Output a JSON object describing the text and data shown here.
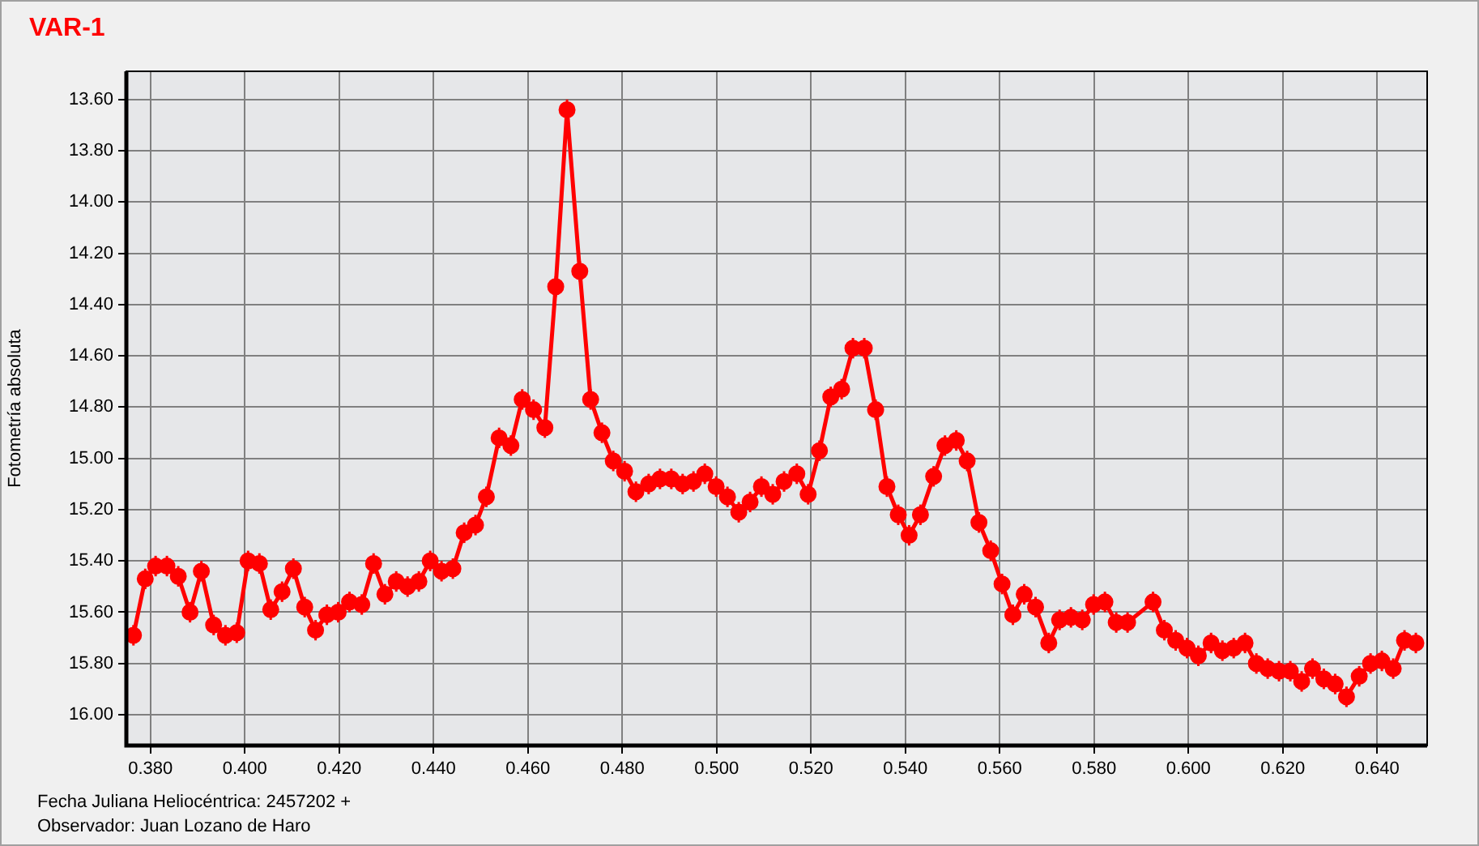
{
  "chart_data": {
    "type": "line",
    "title": "VAR-1",
    "xlabel": "Fecha Juliana Heliocéntrica: 2457202 +",
    "ylabel": "Fotometría absoluta",
    "annotations": [
      "Observador: Juan Lozano de Haro"
    ],
    "x": [
      0.3764,
      0.3789,
      0.3811,
      0.3835,
      0.3859,
      0.3884,
      0.3908,
      0.3934,
      0.3959,
      0.3983,
      0.4007,
      0.4031,
      0.4055,
      0.4079,
      0.4103,
      0.4127,
      0.415,
      0.4174,
      0.4198,
      0.4222,
      0.4248,
      0.4273,
      0.4297,
      0.4321,
      0.4345,
      0.4369,
      0.4393,
      0.4417,
      0.4441,
      0.4465,
      0.4489,
      0.4512,
      0.4539,
      0.4564,
      0.4588,
      0.4612,
      0.4636,
      0.4659,
      0.4683,
      0.471,
      0.4733,
      0.4757,
      0.4781,
      0.4805,
      0.4829,
      0.4856,
      0.488,
      0.4904,
      0.4928,
      0.4951,
      0.4975,
      0.4999,
      0.5023,
      0.5047,
      0.5071,
      0.5095,
      0.5119,
      0.5143,
      0.517,
      0.5194,
      0.5218,
      0.5242,
      0.5265,
      0.5289,
      0.5313,
      0.5337,
      0.5361,
      0.5385,
      0.5408,
      0.5432,
      0.546,
      0.5484,
      0.5508,
      0.5531,
      0.5556,
      0.5581,
      0.5605,
      0.5628,
      0.5652,
      0.5676,
      0.5704,
      0.5727,
      0.5751,
      0.5775,
      0.5799,
      0.5823,
      0.5847,
      0.5871,
      0.5925,
      0.5949,
      0.5973,
      0.5997,
      0.6021,
      0.6048,
      0.6072,
      0.6096,
      0.612,
      0.6144,
      0.6168,
      0.6192,
      0.6216,
      0.624,
      0.6263,
      0.6287,
      0.6311,
      0.6335,
      0.6362,
      0.6386,
      0.641,
      0.6434,
      0.6458,
      0.6482
    ],
    "series": [
      {
        "color": "#ff0000",
        "values": [
          15.69,
          15.47,
          15.42,
          15.42,
          15.46,
          15.6,
          15.44,
          15.65,
          15.69,
          15.68,
          15.4,
          15.41,
          15.59,
          15.52,
          15.43,
          15.58,
          15.67,
          15.61,
          15.6,
          15.56,
          15.57,
          15.41,
          15.53,
          15.48,
          15.5,
          15.48,
          15.4,
          15.44,
          15.43,
          15.29,
          15.26,
          15.15,
          14.92,
          14.95,
          14.77,
          14.81,
          14.88,
          14.33,
          13.64,
          14.27,
          14.77,
          14.9,
          15.01,
          15.05,
          15.13,
          15.1,
          15.08,
          15.08,
          15.1,
          15.09,
          15.06,
          15.11,
          15.15,
          15.21,
          15.17,
          15.11,
          15.14,
          15.09,
          15.06,
          15.14,
          14.97,
          14.76,
          14.73,
          14.57,
          14.57,
          14.81,
          15.11,
          15.22,
          15.3,
          15.22,
          15.07,
          14.95,
          14.93,
          15.01,
          15.25,
          15.36,
          15.49,
          15.61,
          15.53,
          15.58,
          15.72,
          15.63,
          15.62,
          15.63,
          15.57,
          15.56,
          15.64,
          15.64,
          15.56,
          15.67,
          15.71,
          15.74,
          15.77,
          15.72,
          15.75,
          15.74,
          15.72,
          15.8,
          15.82,
          15.83,
          15.83,
          15.87,
          15.82,
          15.86,
          15.88,
          15.93,
          15.85,
          15.8,
          15.79,
          15.82,
          15.71,
          15.72
        ],
        "errors": [
          0.04,
          0.04,
          0.04,
          0.04,
          0.04,
          0.04,
          0.04,
          0.04,
          0.04,
          0.04,
          0.04,
          0.04,
          0.04,
          0.04,
          0.04,
          0.04,
          0.04,
          0.04,
          0.04,
          0.04,
          0.04,
          0.04,
          0.04,
          0.04,
          0.04,
          0.04,
          0.04,
          0.04,
          0.04,
          0.04,
          0.04,
          0.04,
          0.04,
          0.04,
          0.04,
          0.04,
          0.04,
          0.04,
          0.04,
          0.04,
          0.04,
          0.04,
          0.04,
          0.04,
          0.04,
          0.04,
          0.04,
          0.04,
          0.04,
          0.04,
          0.04,
          0.04,
          0.04,
          0.04,
          0.04,
          0.04,
          0.04,
          0.04,
          0.04,
          0.04,
          0.04,
          0.04,
          0.04,
          0.04,
          0.04,
          0.04,
          0.04,
          0.04,
          0.04,
          0.04,
          0.04,
          0.04,
          0.04,
          0.04,
          0.04,
          0.04,
          0.04,
          0.04,
          0.04,
          0.04,
          0.04,
          0.04,
          0.04,
          0.04,
          0.04,
          0.04,
          0.04,
          0.04,
          0.04,
          0.04,
          0.04,
          0.04,
          0.04,
          0.04,
          0.04,
          0.04,
          0.04,
          0.04,
          0.04,
          0.04,
          0.04,
          0.04,
          0.04,
          0.04,
          0.04,
          0.04,
          0.04,
          0.04,
          0.04,
          0.04,
          0.04,
          0.04
        ]
      }
    ],
    "xlim": [
      0.3749,
      0.6506
    ],
    "ylim": [
      16.12,
      13.49
    ],
    "xticks": [
      {
        "value": 0.38,
        "label": "0.380"
      },
      {
        "value": 0.4,
        "label": "0.400"
      },
      {
        "value": 0.42,
        "label": "0.420"
      },
      {
        "value": 0.44,
        "label": "0.440"
      },
      {
        "value": 0.46,
        "label": "0.460"
      },
      {
        "value": 0.48,
        "label": "0.480"
      },
      {
        "value": 0.5,
        "label": "0.500"
      },
      {
        "value": 0.52,
        "label": "0.520"
      },
      {
        "value": 0.54,
        "label": "0.540"
      },
      {
        "value": 0.56,
        "label": "0.560"
      },
      {
        "value": 0.58,
        "label": "0.580"
      },
      {
        "value": 0.6,
        "label": "0.600"
      },
      {
        "value": 0.62,
        "label": "0.620"
      },
      {
        "value": 0.64,
        "label": "0.640"
      }
    ],
    "yticks": [
      {
        "value": 13.6,
        "label": "13.60"
      },
      {
        "value": 13.8,
        "label": "13.80"
      },
      {
        "value": 14,
        "label": "14.00"
      },
      {
        "value": 14.2,
        "label": "14.20"
      },
      {
        "value": 14.4,
        "label": "14.40"
      },
      {
        "value": 14.6,
        "label": "14.60"
      },
      {
        "value": 14.8,
        "label": "14.80"
      },
      {
        "value": 15,
        "label": "15.00"
      },
      {
        "value": 15.2,
        "label": "15.20"
      },
      {
        "value": 15.4,
        "label": "15.40"
      },
      {
        "value": 15.6,
        "label": "15.60"
      },
      {
        "value": 15.8,
        "label": "15.80"
      },
      {
        "value": 16,
        "label": "16.00"
      }
    ],
    "grid": true,
    "marker": "circle",
    "line_style": "solid",
    "legend": false
  }
}
